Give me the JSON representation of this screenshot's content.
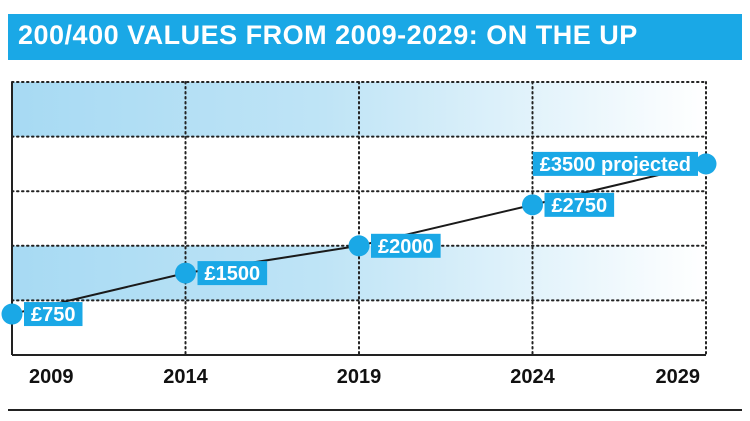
{
  "title": "200/400 VALUES FROM 2009-2029: ON THE UP",
  "colors": {
    "accent": "#1aa8e6",
    "band": "#a7daf3",
    "line": "#1a1a1a",
    "label_text": "#ffffff"
  },
  "chart_data": {
    "type": "line",
    "title": "200/400 VALUES FROM 2009-2029: ON THE UP",
    "xlabel": "",
    "ylabel": "",
    "x": [
      2009,
      2014,
      2019,
      2024,
      2029
    ],
    "xticks": [
      "2009",
      "2014",
      "2019",
      "2024",
      "2029"
    ],
    "xlim": [
      2009,
      2029
    ],
    "ylim": [
      0,
      5000
    ],
    "grid": true,
    "series": [
      {
        "values": [
          750,
          1500,
          2000,
          2750,
          3500
        ],
        "labels": [
          "£750",
          "£1500",
          "£2000",
          "£2750",
          "£3500 projected"
        ]
      }
    ]
  }
}
